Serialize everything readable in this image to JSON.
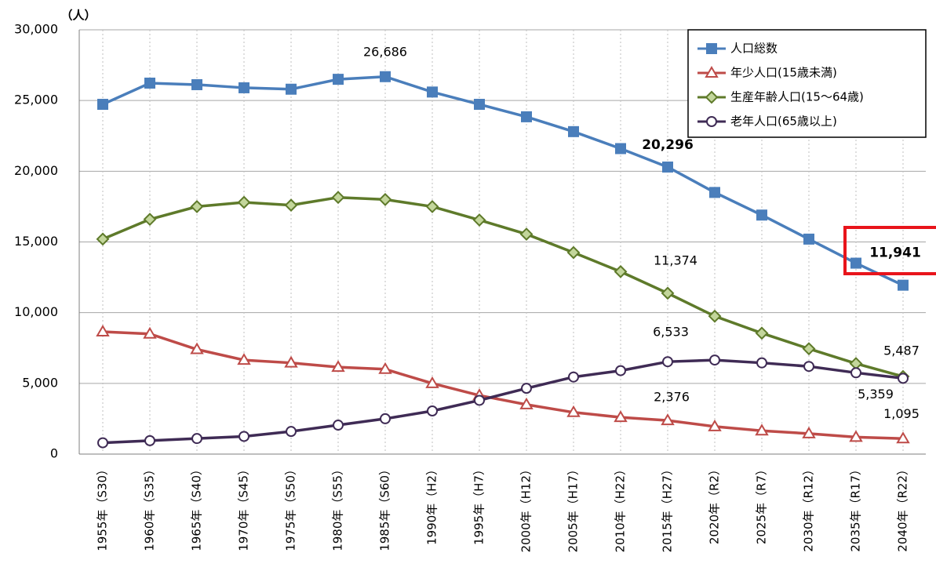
{
  "chart_data": {
    "type": "line",
    "unit_label": "（人）",
    "categories": [
      "1955年（S30）",
      "1960年（S35）",
      "1965年（S40）",
      "1970年（S45）",
      "1975年（S50）",
      "1980年（S55）",
      "1985年（S60）",
      "1990年（H2）",
      "1995年（H7）",
      "2000年（H12）",
      "2005年（H17）",
      "2010年（H22）",
      "2015年（H27）",
      "2020年（R2）",
      "2025年（R7）",
      "2030年（R12）",
      "2035年（R17）",
      "2040年（R22）"
    ],
    "series": [
      {
        "name": "人口総数",
        "color": "#4a7ebb",
        "marker": "square",
        "values": [
          24730,
          26230,
          26120,
          25900,
          25800,
          26500,
          26686,
          25600,
          24730,
          23850,
          22800,
          21600,
          20296,
          18500,
          16900,
          15200,
          13500,
          11941
        ],
        "value_labels": [
          null,
          null,
          null,
          null,
          null,
          null,
          "26,686",
          null,
          null,
          null,
          null,
          null,
          "20,296",
          null,
          null,
          null,
          null,
          "11,941"
        ]
      },
      {
        "name": "年少人口(15歳未満)",
        "color": "#be4b48",
        "marker": "triangle",
        "values": [
          8650,
          8500,
          7400,
          6650,
          6450,
          6150,
          6000,
          5000,
          4150,
          3500,
          2950,
          2600,
          2376,
          1950,
          1650,
          1450,
          1200,
          1095
        ],
        "value_labels": [
          null,
          null,
          null,
          null,
          null,
          null,
          null,
          null,
          null,
          null,
          null,
          null,
          "2,376",
          null,
          null,
          null,
          null,
          "1,095"
        ]
      },
      {
        "name": "生産年齢人口(15～64歳)",
        "color": "#5e7a2a",
        "marker": "diamond",
        "values": [
          15200,
          16600,
          17500,
          17800,
          17600,
          18150,
          18000,
          17500,
          16550,
          15550,
          14250,
          12900,
          11374,
          9750,
          8550,
          7450,
          6400,
          5487
        ],
        "value_labels": [
          null,
          null,
          null,
          null,
          null,
          null,
          null,
          null,
          null,
          null,
          null,
          null,
          "11,374",
          null,
          null,
          null,
          null,
          "5,487"
        ]
      },
      {
        "name": "老年人口(65歳以上)",
        "color": "#3f2b55",
        "marker": "circle",
        "values": [
          800,
          950,
          1100,
          1250,
          1600,
          2050,
          2500,
          3050,
          3800,
          4650,
          5450,
          5900,
          6533,
          6650,
          6450,
          6200,
          5750,
          5359
        ],
        "value_labels": [
          null,
          null,
          null,
          null,
          null,
          null,
          null,
          null,
          null,
          null,
          null,
          null,
          "6,533",
          null,
          null,
          null,
          null,
          "5,359"
        ]
      }
    ],
    "ylim": [
      0,
      30000
    ],
    "yticks": [
      0,
      {
        "value": 5000,
        "label": "5,000"
      },
      {
        "value": 10000,
        "label": "10,000"
      },
      {
        "value": 15000,
        "label": "15,000"
      },
      {
        "value": 20000,
        "label": "20,000"
      },
      {
        "value": 25000,
        "label": "25,000"
      },
      {
        "value": 30000,
        "label": "30,000"
      }
    ],
    "grid": true,
    "legend": "upper right"
  }
}
